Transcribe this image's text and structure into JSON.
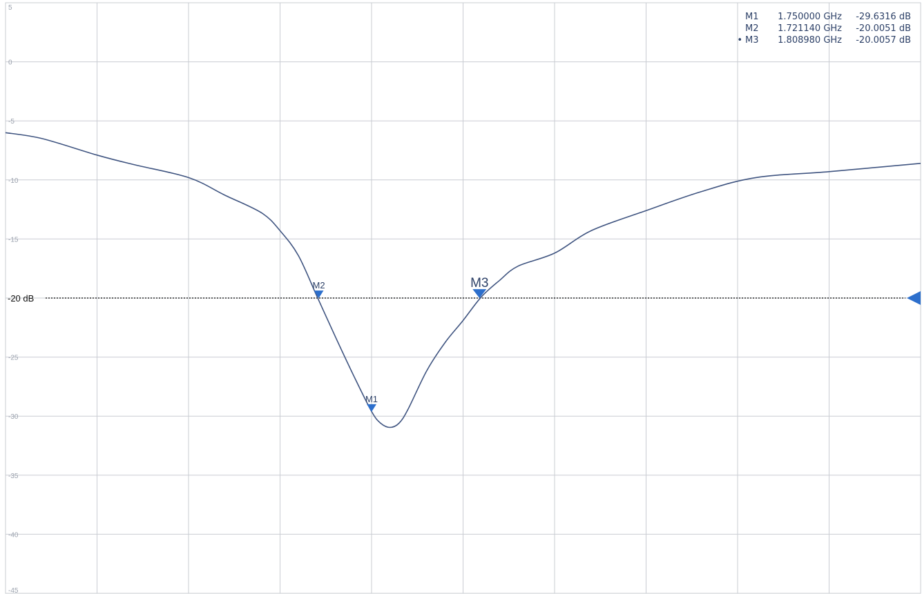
{
  "chart_data": {
    "type": "line",
    "title": "",
    "xlabel": "",
    "ylabel": "",
    "x_unit": "GHz",
    "y_unit": "dB",
    "xlim": [
      1.55,
      2.05
    ],
    "ylim": [
      -45,
      5
    ],
    "y_ticks": [
      5,
      0,
      -5,
      -10,
      -15,
      -20,
      -25,
      -30,
      -35,
      -40,
      -45
    ],
    "y_tick_labels": [
      "5",
      "0",
      "-5",
      "-10",
      "-15",
      "-20",
      "-25",
      "-30",
      "-35",
      "-40",
      "-45"
    ],
    "x_gridlines": 10,
    "grid": true,
    "trace_color": "#3f5480",
    "marker_color": "#2d6fcc",
    "limit_line": {
      "value": -20,
      "label": "-20 dB",
      "color": "#000000"
    },
    "series": [
      {
        "x": [
          1.55,
          1.57,
          1.6,
          1.62,
          1.65,
          1.67,
          1.69,
          1.7,
          1.71,
          1.72,
          1.73,
          1.74,
          1.75,
          1.755,
          1.76,
          1.765,
          1.77,
          1.78,
          1.79,
          1.8,
          1.81,
          1.82,
          1.83,
          1.85,
          1.87,
          1.9,
          1.93,
          1.96,
          2.0,
          2.05
        ],
        "y": [
          -6.0,
          -6.5,
          -7.9,
          -8.7,
          -9.8,
          -11.3,
          -12.8,
          -14.3,
          -16.4,
          -19.8,
          -23.2,
          -26.5,
          -29.6,
          -30.6,
          -30.95,
          -30.6,
          -29.4,
          -26.2,
          -23.8,
          -21.9,
          -19.9,
          -18.5,
          -17.3,
          -16.2,
          -14.3,
          -12.6,
          -11.0,
          -9.8,
          -9.3,
          -8.6
        ]
      }
    ],
    "markers": [
      {
        "name": "M1",
        "x": 1.75,
        "y": -29.6316,
        "frequency": "1.750000 GHz",
        "value": "-29.6316 dB",
        "active": false
      },
      {
        "name": "M2",
        "x": 1.72114,
        "y": -20.0051,
        "frequency": "1.721140 GHz",
        "value": "-20.0051 dB",
        "active": false
      },
      {
        "name": "M3",
        "x": 1.80898,
        "y": -20.0057,
        "frequency": "1.808980 GHz",
        "value": "-20.0057 dB",
        "active": true
      }
    ]
  },
  "marker_table": [
    {
      "dot": "",
      "name": "M1",
      "frequency": "1.750000 GHz",
      "value": "-29.6316 dB"
    },
    {
      "dot": "",
      "name": "M2",
      "frequency": "1.721140 GHz",
      "value": "-20.0051 dB"
    },
    {
      "dot": "•",
      "name": "M3",
      "frequency": "1.808980 GHz",
      "value": "-20.0057 dB"
    }
  ]
}
